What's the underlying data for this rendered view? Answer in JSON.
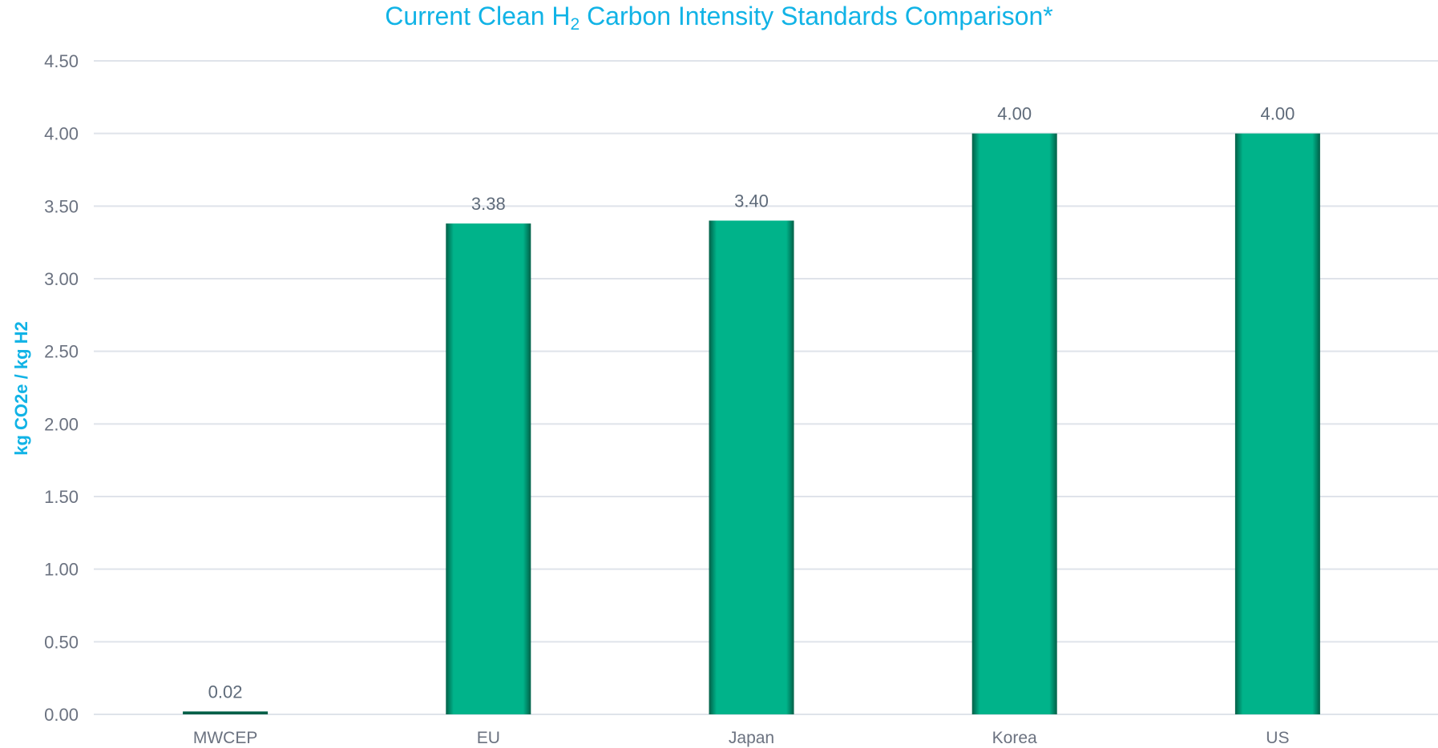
{
  "title": {
    "prefix": "Current Clean H",
    "subscript": "2",
    "suffix": " Carbon Intensity Standards Comparison*"
  },
  "colors": {
    "title": "#11b3e6",
    "bar": "#00b38a",
    "bar_edge": "#005f47",
    "grid": "#dfe3ea"
  },
  "chart_data": {
    "type": "bar",
    "title": "Current Clean H2 Carbon Intensity Standards Comparison*",
    "xlabel": "",
    "ylabel": "kg CO2e / kg H2",
    "categories": [
      "MWCEP",
      "EU",
      "Japan",
      "Korea",
      "US"
    ],
    "values": [
      0.02,
      3.38,
      3.4,
      4.0,
      4.0
    ],
    "value_labels": [
      "0.02",
      "3.38",
      "3.40",
      "4.00",
      "4.00"
    ],
    "ylim": [
      0,
      4.5
    ],
    "yticks": [
      "0.00",
      "0.50",
      "1.00",
      "1.50",
      "2.00",
      "2.50",
      "3.00",
      "3.50",
      "4.00",
      "4.50"
    ],
    "grid": true,
    "legend": "none"
  }
}
